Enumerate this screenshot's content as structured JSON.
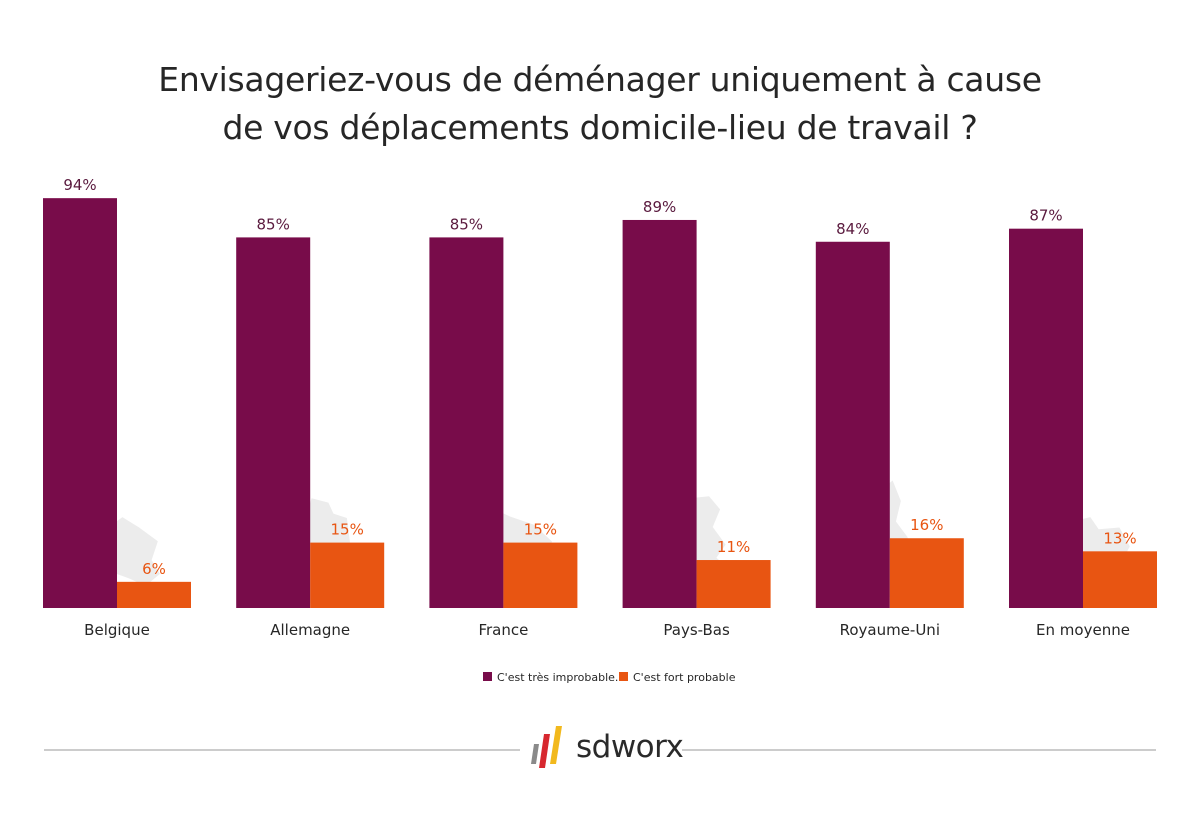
{
  "chart_data": {
    "type": "bar",
    "title_lines": [
      "Envisageriez-vous de déménager uniquement à cause",
      "de vos déplacements domicile-lieu de travail ?"
    ],
    "categories": [
      "Belgique",
      "Allemagne",
      "France",
      "Pays-Bas",
      "Royaume-Uni",
      "En moyenne"
    ],
    "series": [
      {
        "name": "C'est très improbable.",
        "values": [
          94,
          85,
          85,
          89,
          84,
          87
        ],
        "labels": [
          "94%",
          "85%",
          "85%",
          "89%",
          "84%",
          "87%"
        ],
        "color": "#780c4a"
      },
      {
        "name": "C'est fort probable",
        "values": [
          6,
          15,
          15,
          11,
          16,
          13
        ],
        "labels": [
          "6%",
          "15%",
          "15%",
          "11%",
          "16%",
          "13%"
        ],
        "color": "#e85512"
      }
    ],
    "ylim": [
      0,
      100
    ],
    "grid": false,
    "legend": "bottom-center"
  },
  "colors": {
    "improbable": "#780c4a",
    "probable": "#e85512",
    "map_silhouette": "#ececec",
    "logo_red": "#d7282f",
    "logo_yellow": "#f2b91d",
    "logo_gray": "#8a8a8a"
  },
  "map_icons": [
    "belgium-map-icon",
    "germany-map-icon",
    "france-map-icon",
    "netherlands-map-icon",
    "uk-map-icon",
    "europe-map-icon"
  ],
  "footer": {
    "logo_text": "sdworx"
  }
}
